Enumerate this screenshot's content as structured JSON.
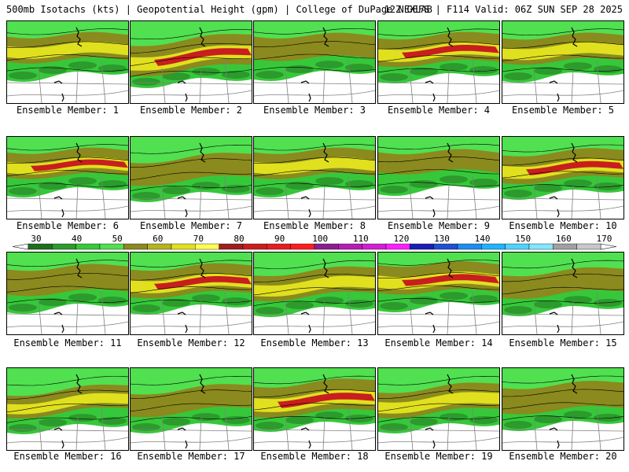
{
  "header": {
    "left": "500mb Isotachs (kts) | Geopotential Height (gpm) | College of DuPage NEXLAB",
    "right": "12Z GEFS | F114 Valid: 06Z SUN SEP 28 2025"
  },
  "colors": {
    "background": "#ffffff",
    "land": "#ffffff",
    "border": "#000000",
    "state_lines": "#808080"
  },
  "colorbar": {
    "ticks": [
      "30",
      "40",
      "50",
      "60",
      "70",
      "80",
      "90",
      "100",
      "110",
      "120",
      "130",
      "140",
      "150",
      "160",
      "170"
    ],
    "colors": [
      "#1e6e1e",
      "#2c9a2c",
      "#36c83a",
      "#50e050",
      "#8a8a1e",
      "#b4b41e",
      "#e0e01e",
      "#ffff50",
      "#a01e1e",
      "#c81e1e",
      "#e61e1e",
      "#ff1e1e",
      "#8c1e8c",
      "#b41eb4",
      "#d21ed2",
      "#ff1eff",
      "#1e1eb4",
      "#1e50d2",
      "#1e8cf0",
      "#1eb4ff",
      "#50d2ff",
      "#80e8ff",
      "#a0a0a0",
      "#c8c8c8"
    ]
  },
  "panels": [
    {
      "label": "Ensemble Member: 1",
      "jet": 2,
      "tilt": 0.15,
      "wide": 1.0
    },
    {
      "label": "Ensemble Member: 2",
      "jet": 3,
      "tilt": 0.55,
      "wide": 1.2
    },
    {
      "label": "Ensemble Member: 3",
      "jet": 1,
      "tilt": 0.1,
      "wide": 0.9
    },
    {
      "label": "Ensemble Member: 4",
      "jet": 3,
      "tilt": 0.25,
      "wide": 1.1
    },
    {
      "label": "Ensemble Member: 5",
      "jet": 2,
      "tilt": 0.2,
      "wide": 1.0
    },
    {
      "label": "Ensemble Member: 6",
      "jet": 3,
      "tilt": 0.15,
      "wide": 1.0
    },
    {
      "label": "Ensemble Member: 7",
      "jet": 1,
      "tilt": 0.45,
      "wide": 0.9
    },
    {
      "label": "Ensemble Member: 8",
      "jet": 2,
      "tilt": 0.15,
      "wide": 1.0
    },
    {
      "label": "Ensemble Member: 9",
      "jet": 1,
      "tilt": 0.05,
      "wide": 0.8
    },
    {
      "label": "Ensemble Member: 10",
      "jet": 3,
      "tilt": 0.3,
      "wide": 1.1
    },
    {
      "label": "Ensemble Member: 11",
      "jet": 1,
      "tilt": 0.2,
      "wide": 1.0
    },
    {
      "label": "Ensemble Member: 12",
      "jet": 3,
      "tilt": 0.25,
      "wide": 1.1
    },
    {
      "label": "Ensemble Member: 13",
      "jet": 2,
      "tilt": 0.4,
      "wide": 1.0
    },
    {
      "label": "Ensemble Member: 14",
      "jet": 3,
      "tilt": 0.1,
      "wide": 1.1
    },
    {
      "label": "Ensemble Member: 15",
      "jet": 1,
      "tilt": 0.35,
      "wide": 0.9
    },
    {
      "label": "Ensemble Member: 16",
      "jet": 2,
      "tilt": 0.5,
      "wide": 0.9
    },
    {
      "label": "Ensemble Member: 17",
      "jet": 1,
      "tilt": 0.45,
      "wide": 0.9
    },
    {
      "label": "Ensemble Member: 18",
      "jet": 3,
      "tilt": 0.35,
      "wide": 1.2
    },
    {
      "label": "Ensemble Member: 19",
      "jet": 2,
      "tilt": 0.45,
      "wide": 1.0
    },
    {
      "label": "Ensemble Member: 20",
      "jet": 1,
      "tilt": 0.3,
      "wide": 1.0
    }
  ]
}
